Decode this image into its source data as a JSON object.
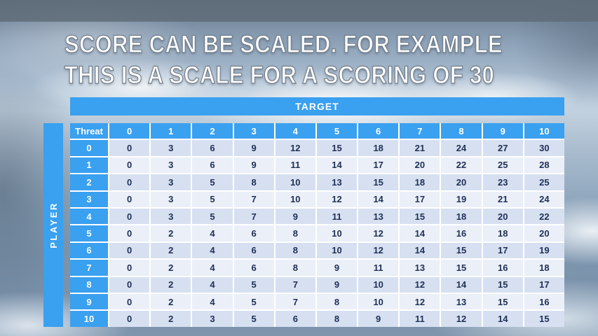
{
  "slide": {
    "title_line1": "SCORE CAN BE SCALED. FOR EXAMPLE",
    "title_line2": "THIS IS A SCALE FOR A SCORING OF 30"
  },
  "table": {
    "target_label": "TARGET",
    "player_label": "PLAYER",
    "threat_label": "Threat",
    "column_headers": [
      "0",
      "1",
      "2",
      "3",
      "4",
      "5",
      "6",
      "7",
      "8",
      "9",
      "10"
    ],
    "rows": [
      {
        "threat": "0",
        "values": [
          0,
          3,
          6,
          9,
          12,
          15,
          18,
          21,
          24,
          27,
          30
        ]
      },
      {
        "threat": "1",
        "values": [
          0,
          3,
          6,
          9,
          11,
          14,
          17,
          20,
          22,
          25,
          28
        ]
      },
      {
        "threat": "2",
        "values": [
          0,
          3,
          5,
          8,
          10,
          13,
          15,
          18,
          20,
          23,
          25
        ]
      },
      {
        "threat": "3",
        "values": [
          0,
          3,
          5,
          7,
          10,
          12,
          14,
          17,
          19,
          21,
          24
        ]
      },
      {
        "threat": "4",
        "values": [
          0,
          3,
          5,
          7,
          9,
          11,
          13,
          15,
          18,
          20,
          22
        ]
      },
      {
        "threat": "5",
        "values": [
          0,
          2,
          4,
          6,
          8,
          10,
          12,
          14,
          16,
          18,
          20
        ]
      },
      {
        "threat": "6",
        "values": [
          0,
          2,
          4,
          6,
          8,
          10,
          12,
          14,
          15,
          17,
          19
        ]
      },
      {
        "threat": "7",
        "values": [
          0,
          2,
          4,
          6,
          8,
          9,
          11,
          13,
          15,
          16,
          18
        ]
      },
      {
        "threat": "8",
        "values": [
          0,
          2,
          4,
          5,
          7,
          9,
          10,
          12,
          14,
          15,
          17
        ]
      },
      {
        "threat": "9",
        "values": [
          0,
          2,
          4,
          5,
          7,
          8,
          10,
          12,
          13,
          15,
          16
        ]
      },
      {
        "threat": "10",
        "values": [
          0,
          2,
          3,
          5,
          6,
          8,
          9,
          11,
          12,
          14,
          15
        ]
      }
    ]
  },
  "colors": {
    "header_blue": "#3AA0F0",
    "band_dark": "#D7E0F1",
    "band_light": "#EAEFF8",
    "data_text": "#1F3055"
  }
}
